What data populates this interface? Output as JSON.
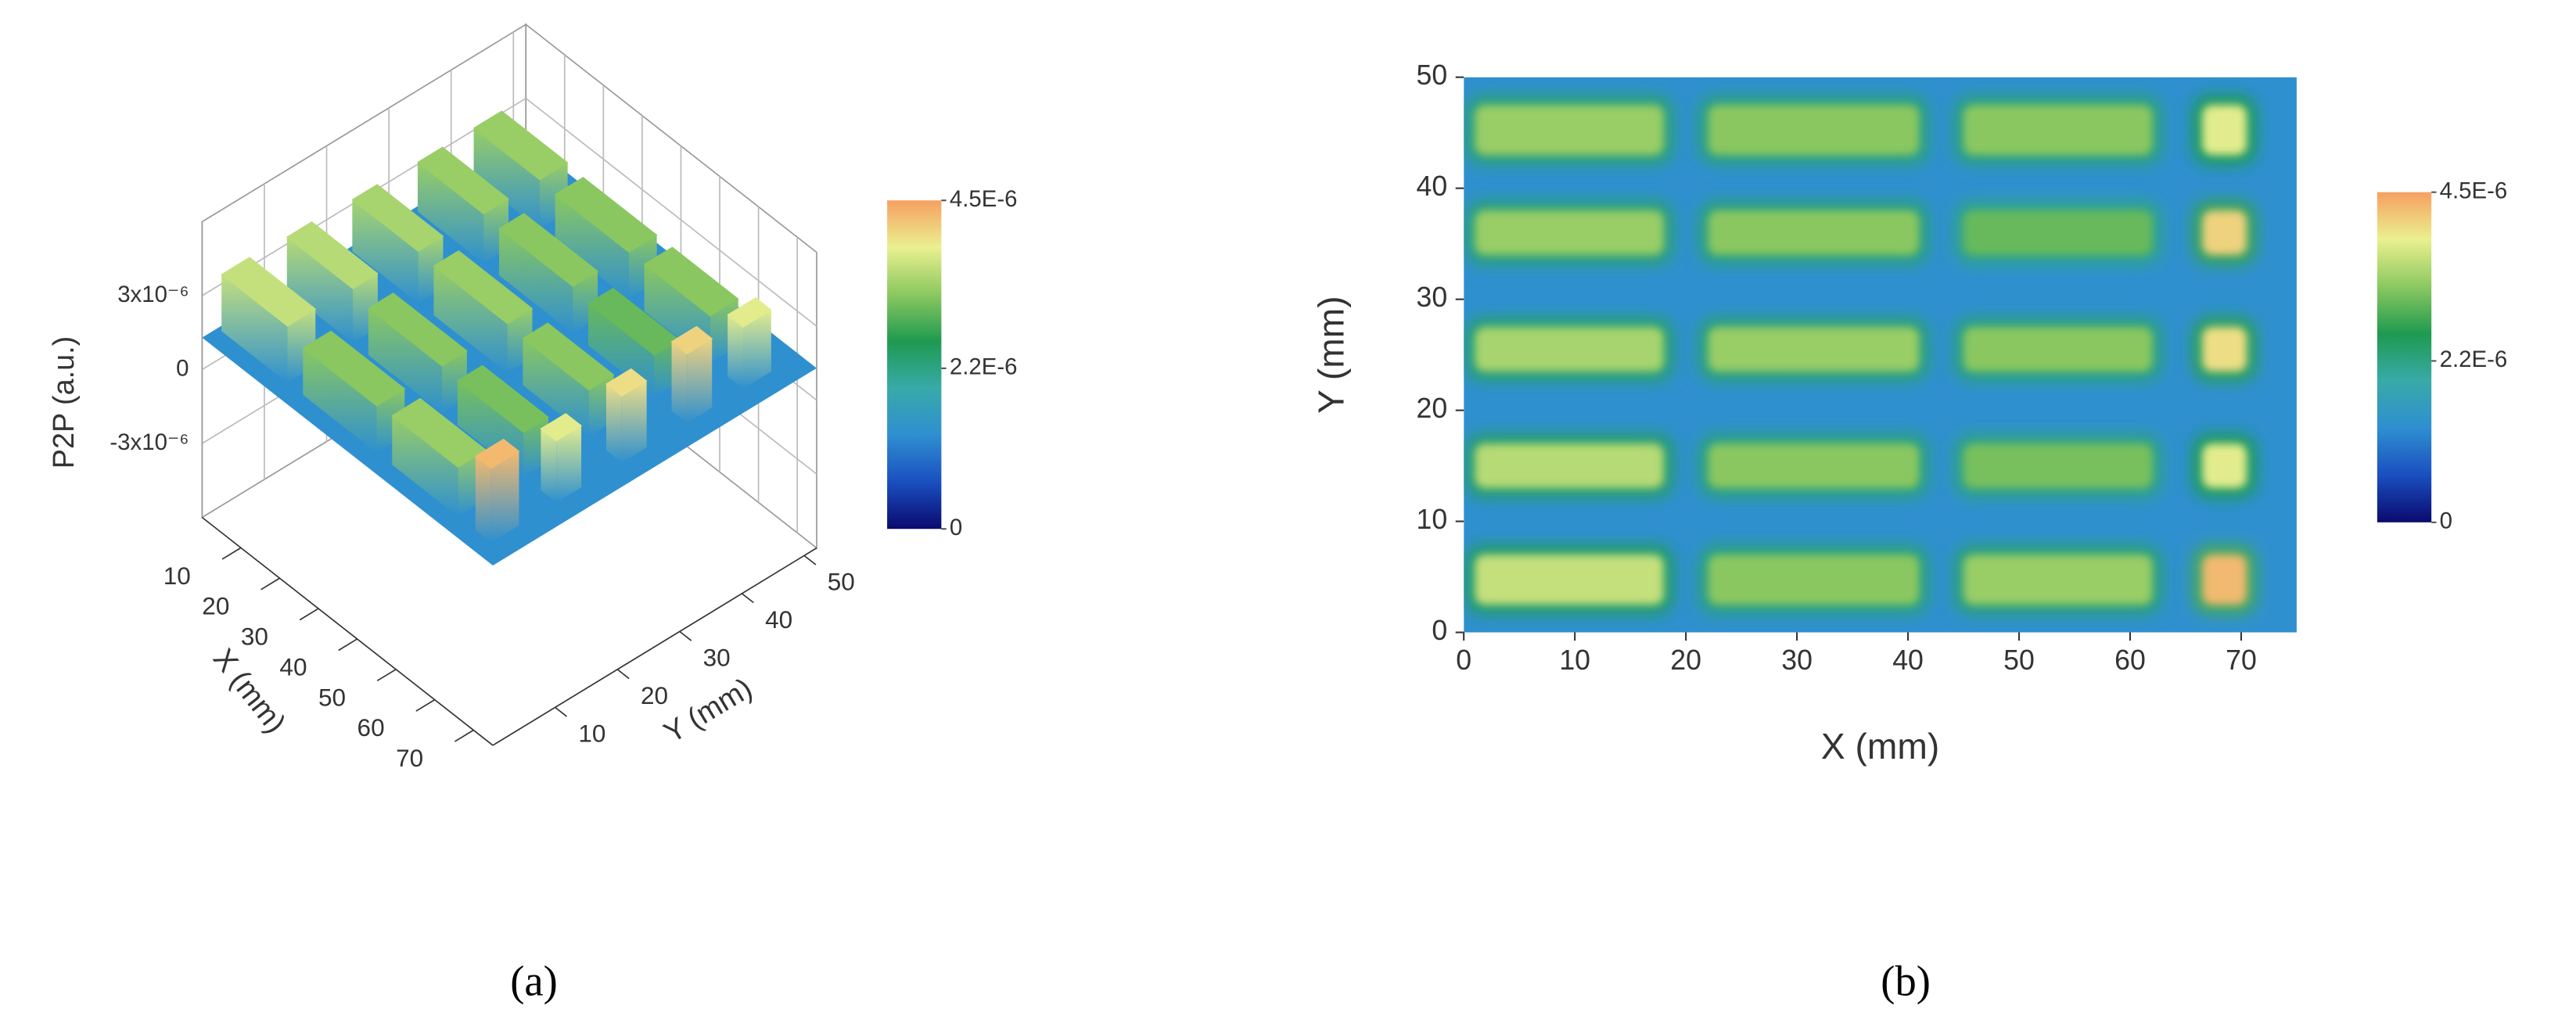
{
  "chart_data": [
    {
      "type": "surface3d",
      "zlabel": "P2P (a.u.)",
      "xlabel": "X (mm)",
      "ylabel": "Y (mm)",
      "caption": "(a)",
      "xlim": [
        0,
        75
      ],
      "ylim": [
        0,
        52
      ],
      "zlim": [
        -6e-06,
        6e-06
      ],
      "xticks": [
        10,
        20,
        30,
        40,
        50,
        60,
        70
      ],
      "yticks": [
        10,
        20,
        30,
        40,
        50
      ],
      "zticks": [
        {
          "value": -3e-06,
          "label": "-3x10⁻⁶"
        },
        0,
        {
          "value": 3e-06,
          "label": "3x10⁻⁶"
        }
      ],
      "base": 1.3e-06,
      "features": [
        {
          "x": [
            1,
            18
          ],
          "y": [
            43,
            47.5
          ],
          "value": 3.3e-06
        },
        {
          "x": [
            22,
            41
          ],
          "y": [
            43,
            47.5
          ],
          "value": 3.2e-06
        },
        {
          "x": [
            45,
            62
          ],
          "y": [
            43,
            47.5
          ],
          "value": 3.2e-06
        },
        {
          "x": [
            66.5,
            70.5
          ],
          "y": [
            43,
            47.5
          ],
          "value": 3.8e-06
        },
        {
          "x": [
            1,
            18
          ],
          "y": [
            34,
            38
          ],
          "value": 3.3e-06
        },
        {
          "x": [
            22,
            41
          ],
          "y": [
            34,
            38
          ],
          "value": 3.2e-06
        },
        {
          "x": [
            45,
            62
          ],
          "y": [
            34,
            38
          ],
          "value": 3e-06
        },
        {
          "x": [
            66.5,
            70.5
          ],
          "y": [
            34,
            38
          ],
          "value": 4.1e-06
        },
        {
          "x": [
            1,
            18
          ],
          "y": [
            23.5,
            27.5
          ],
          "value": 3.4e-06
        },
        {
          "x": [
            22,
            41
          ],
          "y": [
            23.5,
            27.5
          ],
          "value": 3.3e-06
        },
        {
          "x": [
            45,
            62
          ],
          "y": [
            23.5,
            27.5
          ],
          "value": 3.2e-06
        },
        {
          "x": [
            66.5,
            70.5
          ],
          "y": [
            23.5,
            27.5
          ],
          "value": 4e-06
        },
        {
          "x": [
            1,
            18
          ],
          "y": [
            13,
            17
          ],
          "value": 3.5e-06
        },
        {
          "x": [
            22,
            41
          ],
          "y": [
            13,
            17
          ],
          "value": 3.2e-06
        },
        {
          "x": [
            45,
            62
          ],
          "y": [
            13,
            17
          ],
          "value": 3.1e-06
        },
        {
          "x": [
            66.5,
            70.5
          ],
          "y": [
            13,
            17
          ],
          "value": 3.8e-06
        },
        {
          "x": [
            1,
            18
          ],
          "y": [
            2.5,
            7
          ],
          "value": 3.6e-06
        },
        {
          "x": [
            22,
            41
          ],
          "y": [
            2.5,
            7
          ],
          "value": 3.2e-06
        },
        {
          "x": [
            45,
            62
          ],
          "y": [
            2.5,
            7
          ],
          "value": 3.3e-06
        },
        {
          "x": [
            66.5,
            70.5
          ],
          "y": [
            2.5,
            7
          ],
          "value": 4.3e-06
        }
      ],
      "colorbar": {
        "clim": [
          0,
          4.5e-06
        ],
        "ticks": [
          0,
          {
            "value": 2.2e-06,
            "label": "2.2E-6"
          },
          {
            "value": 4.5e-06,
            "label": "4.5E-6"
          }
        ],
        "colors": [
          "#0a0a6e",
          "#1a4fc0",
          "#2f8fd0",
          "#38aaa8",
          "#1e9a50",
          "#8cc860",
          "#eaf090",
          "#f6a060"
        ]
      }
    },
    {
      "type": "heatmap",
      "xlabel": "X (mm)",
      "ylabel": "Y (mm)",
      "caption": "(b)",
      "xlim": [
        0,
        75
      ],
      "ylim": [
        0,
        50
      ],
      "xticks": [
        0,
        10,
        20,
        30,
        40,
        50,
        60,
        70
      ],
      "yticks": [
        0,
        10,
        20,
        30,
        40,
        50
      ],
      "background": 1.3e-06,
      "features": [
        {
          "x": [
            1,
            18
          ],
          "y": [
            43,
            47.5
          ],
          "value": 3.3e-06
        },
        {
          "x": [
            22,
            41
          ],
          "y": [
            43,
            47.5
          ],
          "value": 3.2e-06
        },
        {
          "x": [
            45,
            62
          ],
          "y": [
            43,
            47.5
          ],
          "value": 3.2e-06
        },
        {
          "x": [
            66.5,
            70.5
          ],
          "y": [
            43,
            47.5
          ],
          "value": 3.8e-06
        },
        {
          "x": [
            1,
            18
          ],
          "y": [
            34,
            38
          ],
          "value": 3.3e-06
        },
        {
          "x": [
            22,
            41
          ],
          "y": [
            34,
            38
          ],
          "value": 3.2e-06
        },
        {
          "x": [
            45,
            62
          ],
          "y": [
            34,
            38
          ],
          "value": 3e-06
        },
        {
          "x": [
            66.5,
            70.5
          ],
          "y": [
            34,
            38
          ],
          "value": 4.1e-06
        },
        {
          "x": [
            1,
            18
          ],
          "y": [
            23.5,
            27.5
          ],
          "value": 3.4e-06
        },
        {
          "x": [
            22,
            41
          ],
          "y": [
            23.5,
            27.5
          ],
          "value": 3.3e-06
        },
        {
          "x": [
            45,
            62
          ],
          "y": [
            23.5,
            27.5
          ],
          "value": 3.2e-06
        },
        {
          "x": [
            66.5,
            70.5
          ],
          "y": [
            23.5,
            27.5
          ],
          "value": 4e-06
        },
        {
          "x": [
            1,
            18
          ],
          "y": [
            13,
            17
          ],
          "value": 3.5e-06
        },
        {
          "x": [
            22,
            41
          ],
          "y": [
            13,
            17
          ],
          "value": 3.2e-06
        },
        {
          "x": [
            45,
            62
          ],
          "y": [
            13,
            17
          ],
          "value": 3.1e-06
        },
        {
          "x": [
            66.5,
            70.5
          ],
          "y": [
            13,
            17
          ],
          "value": 3.8e-06
        },
        {
          "x": [
            1,
            18
          ],
          "y": [
            2.5,
            7
          ],
          "value": 3.6e-06
        },
        {
          "x": [
            22,
            41
          ],
          "y": [
            2.5,
            7
          ],
          "value": 3.2e-06
        },
        {
          "x": [
            45,
            62
          ],
          "y": [
            2.5,
            7
          ],
          "value": 3.3e-06
        },
        {
          "x": [
            66.5,
            70.5
          ],
          "y": [
            2.5,
            7
          ],
          "value": 4.3e-06
        }
      ],
      "colorbar": {
        "clim": [
          0,
          4.5e-06
        ],
        "ticks": [
          0,
          {
            "value": 2.2e-06,
            "label": "2.2E-6"
          },
          {
            "value": 4.5e-06,
            "label": "4.5E-6"
          }
        ],
        "colors": [
          "#0a0a6e",
          "#1a4fc0",
          "#2f8fd0",
          "#38aaa8",
          "#1e9a50",
          "#8cc860",
          "#eaf090",
          "#f6a060"
        ]
      }
    }
  ]
}
